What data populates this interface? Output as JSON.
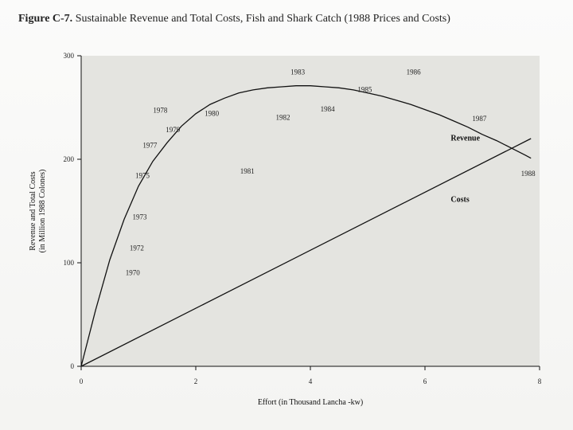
{
  "figure": {
    "label": "Figure C-7.",
    "title": "Sustainable Revenue and Total Costs, Fish and Shark Catch (1988 Prices and Costs)"
  },
  "chart_data": {
    "type": "line",
    "xlabel": "Effort (in Thousand Lancha -kw)",
    "ylabel_line1": "Revenue and Total Costs",
    "ylabel_line2": "(in Million 1988 Colones)",
    "xlim": [
      0,
      8
    ],
    "ylim": [
      0,
      300
    ],
    "xticks": [
      0,
      2,
      4,
      6,
      8
    ],
    "yticks": [
      0,
      100,
      200,
      300
    ],
    "grid": false,
    "series": [
      {
        "name": "Revenue",
        "x": [
          0,
          0.25,
          0.5,
          0.75,
          1.0,
          1.25,
          1.5,
          1.75,
          2.0,
          2.25,
          2.5,
          2.75,
          3.0,
          3.25,
          3.5,
          3.75,
          4.0,
          4.25,
          4.5,
          4.75,
          5.0,
          5.25,
          5.5,
          5.75,
          6.0,
          6.25,
          6.5,
          6.75,
          7.0,
          7.25,
          7.5,
          7.75,
          7.85
        ],
        "y": [
          0,
          54,
          103,
          142,
          174,
          198,
          216,
          232,
          244,
          253,
          259,
          264,
          267,
          269,
          270,
          271,
          271,
          270,
          269,
          267,
          264,
          261,
          257,
          253,
          248,
          243,
          237,
          231,
          224,
          218,
          211,
          204,
          201
        ]
      },
      {
        "name": "Costs",
        "x": [
          0,
          7.85
        ],
        "y": [
          0,
          220
        ]
      }
    ],
    "annotations": [
      {
        "text": "1970",
        "x": 0.9,
        "y": 88
      },
      {
        "text": "1972",
        "x": 0.97,
        "y": 112
      },
      {
        "text": "1973",
        "x": 1.02,
        "y": 142
      },
      {
        "text": "1975",
        "x": 1.07,
        "y": 182
      },
      {
        "text": "1977",
        "x": 1.2,
        "y": 211
      },
      {
        "text": "1979",
        "x": 1.6,
        "y": 226
      },
      {
        "text": "1978",
        "x": 1.38,
        "y": 245
      },
      {
        "text": "1980",
        "x": 2.28,
        "y": 242
      },
      {
        "text": "1981",
        "x": 2.9,
        "y": 186
      },
      {
        "text": "1982",
        "x": 3.52,
        "y": 238
      },
      {
        "text": "1983",
        "x": 3.78,
        "y": 282
      },
      {
        "text": "1984",
        "x": 4.3,
        "y": 246
      },
      {
        "text": "1985",
        "x": 4.95,
        "y": 265
      },
      {
        "text": "1986",
        "x": 5.8,
        "y": 282
      },
      {
        "text": "1987",
        "x": 6.95,
        "y": 237
      },
      {
        "text": "1988",
        "x": 7.8,
        "y": 184
      }
    ],
    "series_labels": [
      {
        "text": "Revenue",
        "x": 6.45,
        "y": 218
      },
      {
        "text": "Costs",
        "x": 6.45,
        "y": 159
      }
    ]
  }
}
